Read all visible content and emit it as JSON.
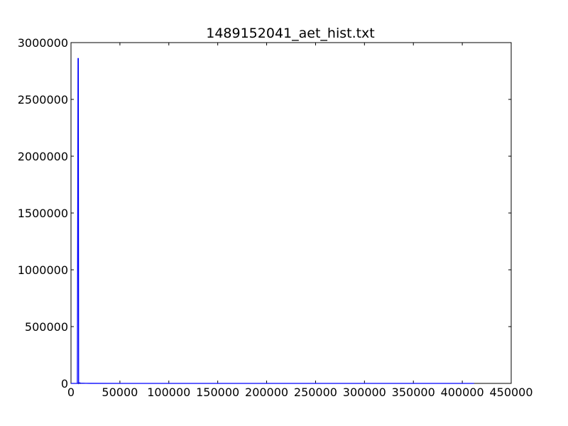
{
  "chart_data": {
    "type": "line",
    "title": "1489152041_aet_hist.txt",
    "xlabel": "",
    "ylabel": "",
    "xlim": [
      0,
      450000
    ],
    "ylim": [
      0,
      3000000
    ],
    "x_ticks": [
      0,
      50000,
      100000,
      150000,
      200000,
      250000,
      300000,
      350000,
      400000,
      450000
    ],
    "y_ticks": [
      0,
      500000,
      1000000,
      1500000,
      2000000,
      2500000,
      3000000
    ],
    "x_tick_labels": [
      "0",
      "50000",
      "100000",
      "150000",
      "200000",
      "250000",
      "300000",
      "350000",
      "400000",
      "450000"
    ],
    "y_tick_labels": [
      "0",
      "500000",
      "1000000",
      "1500000",
      "2000000",
      "2500000",
      "3000000"
    ],
    "grid": false,
    "series_color": "#0000ff",
    "series": [
      {
        "x": [
          0,
          6500,
          7200,
          7500,
          7800,
          8500,
          10000,
          15000,
          20000,
          50000,
          100000,
          200000,
          300000,
          400000,
          412000
        ],
        "values": [
          0,
          0,
          2860000,
          2860000,
          0,
          5000,
          2000,
          1000,
          300,
          0,
          0,
          0,
          0,
          0,
          0
        ]
      }
    ]
  }
}
